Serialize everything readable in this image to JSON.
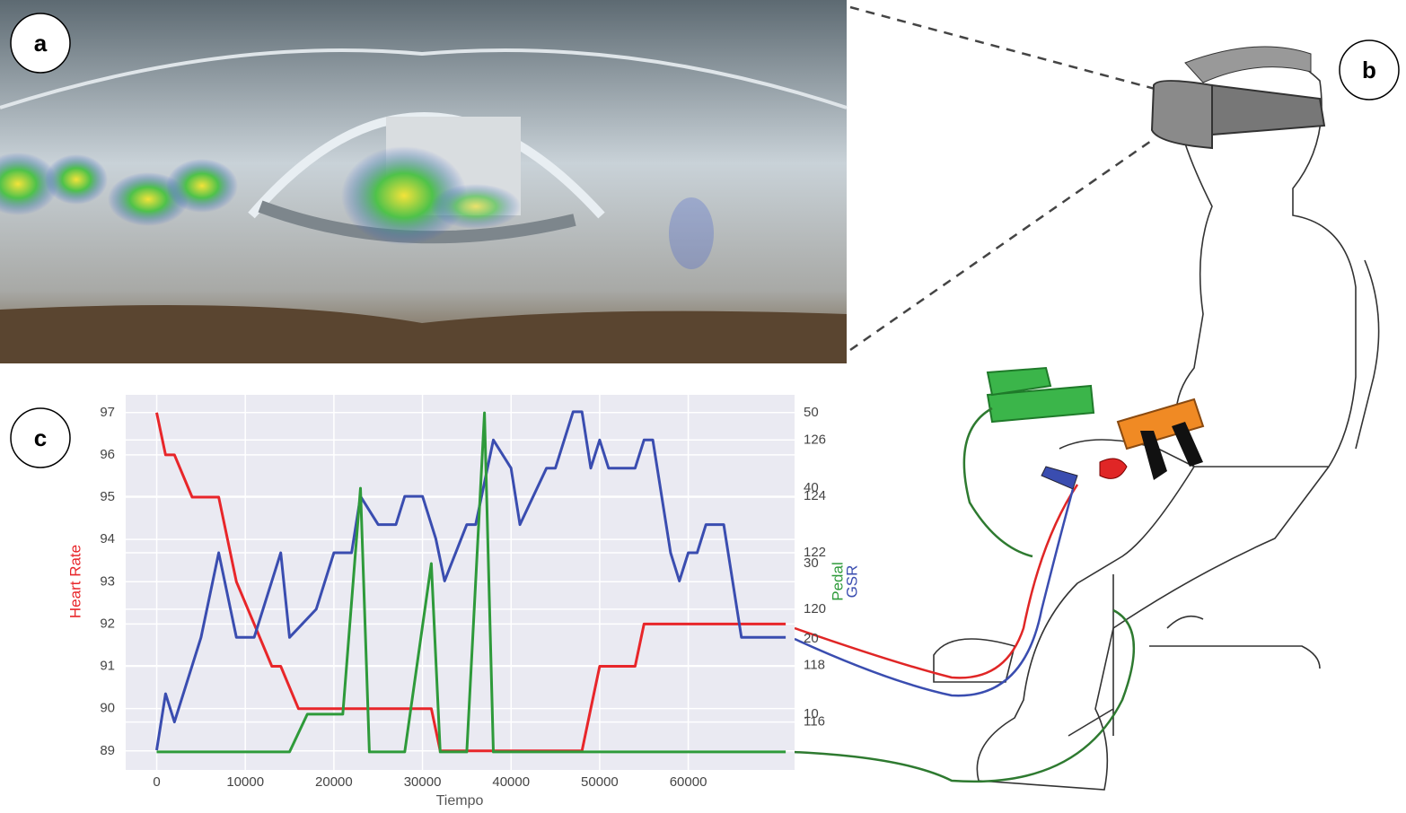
{
  "panel_labels": [
    "a",
    "b",
    "c"
  ],
  "chart_data": {
    "type": "line",
    "x_label": "Tiempo",
    "y_label": "Heart Rate",
    "y2_label": "GSR",
    "y3_label": "Pedal",
    "xlim": [
      -3500,
      72000
    ],
    "xticks": [
      0,
      10000,
      20000,
      30000,
      40000,
      50000,
      60000
    ],
    "ylim": [
      88.55,
      97.42
    ],
    "yticks": [
      89,
      90,
      91,
      92,
      93,
      94,
      95,
      96,
      97
    ],
    "y2lim": [
      114.3,
      127.6
    ],
    "y2ticks": [
      116,
      118,
      120,
      122,
      124,
      126
    ],
    "y3lim": [
      2.6,
      52.4
    ],
    "y3ticks": [
      10,
      20,
      30,
      40,
      50
    ],
    "grid": true,
    "series": [
      {
        "name": "Heart Rate",
        "color": "#e8262a",
        "axis": "y",
        "x": [
          0,
          1000,
          2000,
          4000,
          7000,
          9000,
          11000,
          13000,
          14000,
          16000,
          31000,
          32000,
          48000,
          49000,
          50000,
          54000,
          55000,
          71000
        ],
        "values": [
          97,
          96,
          96,
          95,
          95,
          93,
          92,
          91,
          91,
          90,
          90,
          89,
          89,
          90,
          91,
          91,
          92,
          92
        ]
      },
      {
        "name": "GSR",
        "color": "#3a4db0",
        "axis": "y2",
        "x": [
          0,
          1000,
          2000,
          5000,
          7000,
          9000,
          11000,
          14000,
          15000,
          18000,
          20000,
          22000,
          23000,
          25000,
          27000,
          28000,
          30000,
          31500,
          32500,
          35000,
          36000,
          38000,
          40000,
          41000,
          44000,
          45000,
          47000,
          48000,
          49000,
          50000,
          51000,
          54000,
          55000,
          56000,
          58000,
          59000,
          60000,
          61000,
          62000,
          64000,
          66000,
          71000
        ],
        "values": [
          115,
          117,
          116,
          119,
          122,
          119,
          119,
          122,
          119,
          120,
          122,
          122,
          124,
          123,
          123,
          124,
          124,
          122.5,
          121,
          123,
          123,
          126,
          125,
          123,
          125,
          125,
          127,
          127,
          125,
          126,
          125,
          125,
          126,
          126,
          122,
          121,
          122,
          122,
          123,
          123,
          119,
          119
        ]
      },
      {
        "name": "Pedal",
        "color": "#2e9a3a",
        "axis": "y3",
        "x": [
          0,
          15000,
          17000,
          21000,
          23000,
          24000,
          28000,
          31000,
          32000,
          35000,
          37000,
          38000,
          71000
        ],
        "values": [
          5,
          5,
          10,
          10,
          40,
          5,
          5,
          30,
          5,
          5,
          50,
          5,
          5
        ]
      }
    ]
  }
}
